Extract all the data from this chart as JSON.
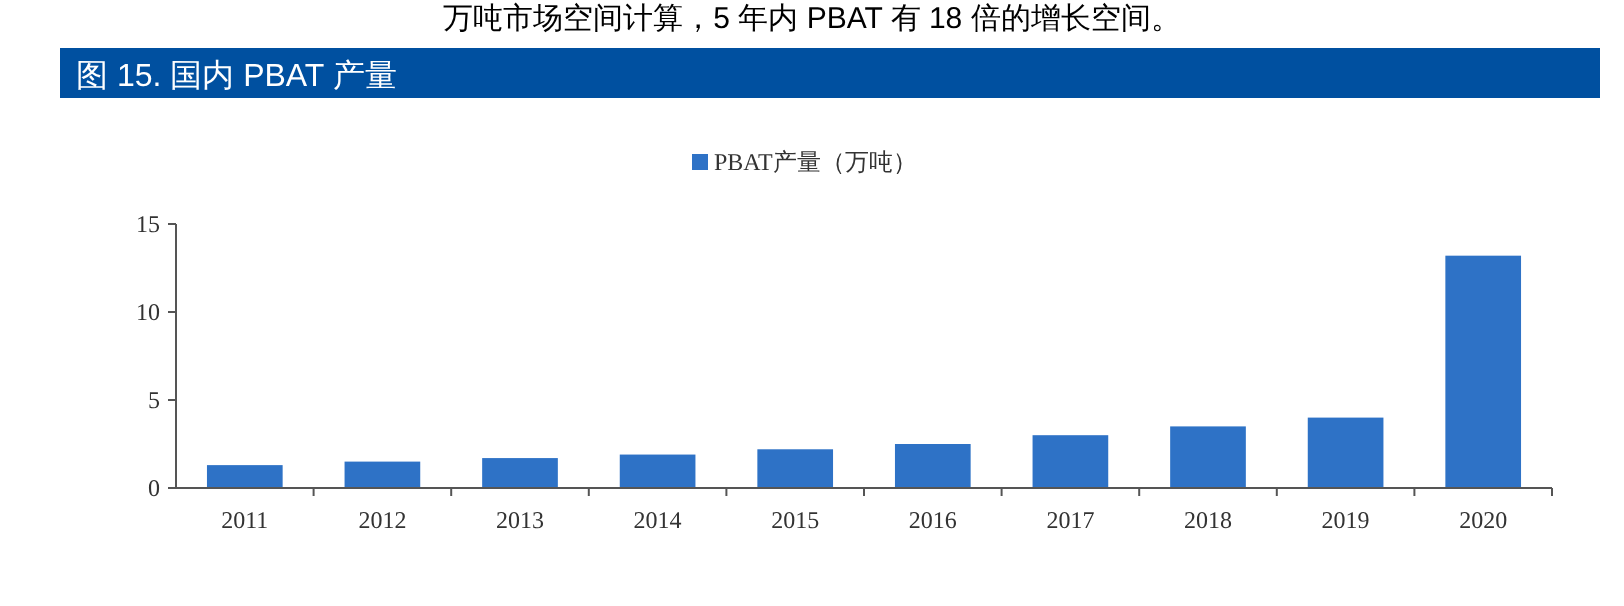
{
  "chart_data": {
    "type": "bar",
    "title": "图 15. 国内 PBAT 产量",
    "annotations": [
      "万吨市场空间计算，5 年内 PBAT 有 18 倍的增长空间。"
    ],
    "categories": [
      "2011",
      "2012",
      "2013",
      "2014",
      "2015",
      "2016",
      "2017",
      "2018",
      "2019",
      "2020"
    ],
    "series": [
      {
        "name": "PBAT产量（万吨）",
        "color": "#2e72c6",
        "values": [
          1.3,
          1.5,
          1.7,
          1.9,
          2.2,
          2.5,
          3,
          3.5,
          4,
          13.2
        ]
      }
    ],
    "ylim": [
      0,
      15
    ],
    "yticks": [
      0,
      5,
      10,
      15
    ],
    "grid": false,
    "legend": "top"
  }
}
